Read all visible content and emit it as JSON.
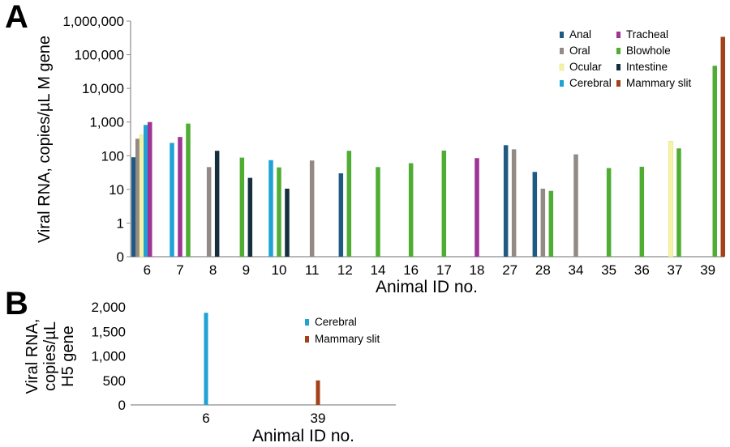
{
  "chart_data": [
    {
      "type": "bar",
      "panel": "A",
      "ylabel": "Viral RNA, copies/µL M gene",
      "xlabel": "Animal ID no.",
      "yscale": "log (0 shown at base)",
      "ylim": [
        0,
        1000000
      ],
      "yticks": [
        {
          "value": 0,
          "label": "0"
        },
        {
          "value": 1,
          "label": "1"
        },
        {
          "value": 10,
          "label": "10"
        },
        {
          "value": 100,
          "label": "100"
        },
        {
          "value": 1000,
          "label": "1,000"
        },
        {
          "value": 10000,
          "label": "10,000"
        },
        {
          "value": 100000,
          "label": "100,000"
        },
        {
          "value": 1000000,
          "label": "1,000,000"
        }
      ],
      "categories": [
        "6",
        "7",
        "8",
        "9",
        "10",
        "11",
        "12",
        "14",
        "16",
        "17",
        "18",
        "27",
        "28",
        "34",
        "35",
        "36",
        "37",
        "39"
      ],
      "legend_position": "top-right",
      "grid": false,
      "series": [
        {
          "name": "Anal",
          "color": "#1f5a82",
          "values": [
            90,
            null,
            null,
            null,
            null,
            null,
            30,
            null,
            null,
            null,
            null,
            205,
            33,
            null,
            null,
            null,
            null,
            null
          ]
        },
        {
          "name": "Oral",
          "color": "#948a85",
          "values": [
            320,
            null,
            46,
            null,
            null,
            72,
            null,
            null,
            null,
            null,
            null,
            155,
            10.5,
            110,
            null,
            null,
            null,
            null
          ]
        },
        {
          "name": "Ocular",
          "color": "#f6f3a6",
          "values": [
            420,
            null,
            null,
            null,
            null,
            null,
            null,
            null,
            null,
            null,
            null,
            null,
            null,
            null,
            null,
            null,
            270,
            null
          ]
        },
        {
          "name": "Cerebral",
          "color": "#1fa2d5",
          "values": [
            820,
            240,
            null,
            null,
            74,
            null,
            null,
            null,
            null,
            null,
            null,
            null,
            null,
            null,
            null,
            null,
            null,
            null
          ]
        },
        {
          "name": "Tracheal",
          "color": "#a03396",
          "values": [
            1000,
            360,
            null,
            null,
            null,
            null,
            null,
            null,
            null,
            null,
            85,
            null,
            null,
            null,
            null,
            null,
            null,
            null
          ]
        },
        {
          "name": "Blowhole",
          "color": "#4fad34",
          "values": [
            null,
            900,
            null,
            88,
            45,
            null,
            140,
            46,
            60,
            142,
            null,
            null,
            9,
            null,
            43,
            47,
            165,
            47000
          ]
        },
        {
          "name": "Intestine",
          "color": "#162f3f",
          "values": [
            null,
            null,
            140,
            22,
            10.5,
            null,
            null,
            null,
            null,
            null,
            null,
            null,
            null,
            null,
            null,
            null,
            null,
            null
          ]
        },
        {
          "name": "Mammary slit",
          "color": "#a3421a",
          "values": [
            null,
            null,
            null,
            null,
            null,
            null,
            null,
            null,
            null,
            null,
            null,
            null,
            null,
            null,
            null,
            null,
            null,
            340000
          ]
        }
      ]
    },
    {
      "type": "bar",
      "panel": "B",
      "ylabel": "Viral RNA, copies/µL H5 gene",
      "xlabel": "Animal ID no.",
      "ylim": [
        0,
        2000
      ],
      "yticks": [
        {
          "value": 0,
          "label": "0"
        },
        {
          "value": 500,
          "label": "500"
        },
        {
          "value": 1000,
          "label": "1,000"
        },
        {
          "value": 1500,
          "label": "1,500"
        },
        {
          "value": 2000,
          "label": "2,000"
        }
      ],
      "categories": [
        "6",
        "39"
      ],
      "legend_position": "top-right",
      "grid": false,
      "series": [
        {
          "name": "Cerebral",
          "color": "#1fa2d5",
          "values": [
            1880,
            null
          ]
        },
        {
          "name": "Mammary slit",
          "color": "#a3421a",
          "values": [
            null,
            500
          ]
        }
      ]
    }
  ]
}
